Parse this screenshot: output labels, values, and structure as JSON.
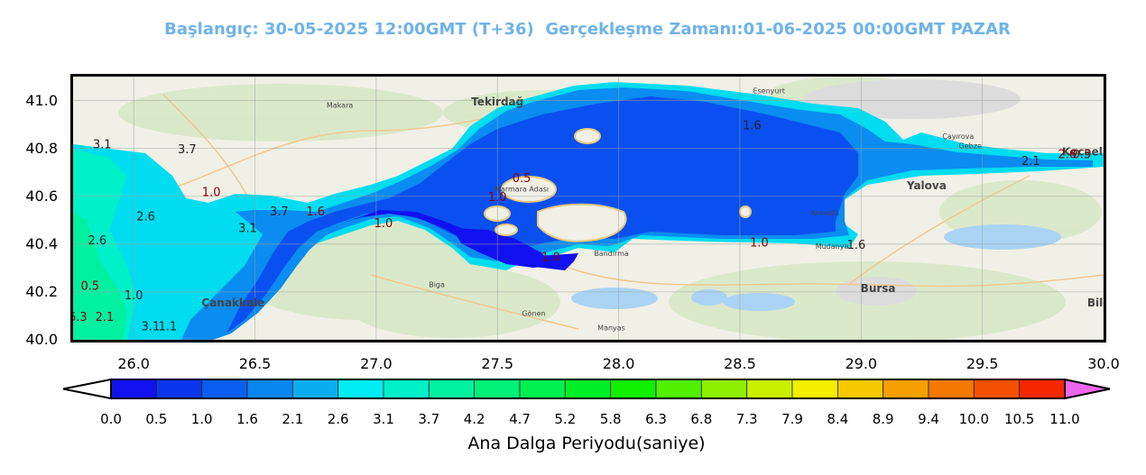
{
  "header": {
    "title": "Başlangıç: 30-05-2025 12:00GMT (T+36)  Gerçekleşme Zamanı:01-06-2025 00:00GMT PAZAR"
  },
  "map": {
    "type": "wave period contour map",
    "lon_range": [
      25.75,
      30.0
    ],
    "lat_range": [
      40.0,
      41.1
    ],
    "x_ticks": [
      "26.0",
      "26.5",
      "27.0",
      "27.5",
      "28.0",
      "28.5",
      "29.0",
      "29.5",
      "30.0"
    ],
    "y_ticks": [
      "40.0",
      "40.2",
      "40.4",
      "40.6",
      "40.8",
      "41.0"
    ],
    "grid": true,
    "place_labels": [
      {
        "name": "Tekirdağ",
        "lon": 27.5,
        "lat": 40.98
      },
      {
        "name": "Marmara Adası",
        "lon": 27.6,
        "lat": 40.62
      },
      {
        "name": "Bandırma",
        "lon": 27.97,
        "lat": 40.35
      },
      {
        "name": "Çanakkale",
        "lon": 26.41,
        "lat": 40.14
      },
      {
        "name": "Yalova",
        "lon": 29.27,
        "lat": 40.63
      },
      {
        "name": "Bursa",
        "lon": 29.07,
        "lat": 40.2
      },
      {
        "name": "Kocaeli",
        "lon": 29.92,
        "lat": 40.77
      },
      {
        "name": "Bile",
        "lon": 29.98,
        "lat": 40.14
      },
      {
        "name": "Gönen",
        "lon": 27.65,
        "lat": 40.1
      },
      {
        "name": "Manyas",
        "lon": 27.97,
        "lat": 40.04
      },
      {
        "name": "Biga",
        "lon": 27.25,
        "lat": 40.22
      },
      {
        "name": "Makara",
        "lon": 26.85,
        "lat": 40.97
      },
      {
        "name": "Esenyurt",
        "lon": 28.62,
        "lat": 41.03
      },
      {
        "name": "Armutlu",
        "lon": 28.85,
        "lat": 40.52
      },
      {
        "name": "Mudanya",
        "lon": 28.88,
        "lat": 40.38
      },
      {
        "name": "Çayırova",
        "lon": 29.4,
        "lat": 40.84
      },
      {
        "name": "Gebze",
        "lon": 29.45,
        "lat": 40.8
      }
    ],
    "contour_labels": [
      {
        "text": "3.1",
        "lon": 25.87,
        "lat": 40.8,
        "color": "#222222"
      },
      {
        "text": "3.7",
        "lon": 26.22,
        "lat": 40.78,
        "color": "#222222"
      },
      {
        "text": "1.0",
        "lon": 26.32,
        "lat": 40.6,
        "color": "#8b0000"
      },
      {
        "text": "2.6",
        "lon": 26.05,
        "lat": 40.5,
        "color": "#222222"
      },
      {
        "text": "3.7",
        "lon": 26.6,
        "lat": 40.52,
        "color": "#222222"
      },
      {
        "text": "3.1",
        "lon": 26.47,
        "lat": 40.45,
        "color": "#222222"
      },
      {
        "text": "1.6",
        "lon": 26.75,
        "lat": 40.52,
        "color": "#8b0000"
      },
      {
        "text": "2.6",
        "lon": 25.85,
        "lat": 40.4,
        "color": "#222222"
      },
      {
        "text": "1.0",
        "lon": 27.03,
        "lat": 40.47,
        "color": "#8b0000"
      },
      {
        "text": "0.5",
        "lon": 27.6,
        "lat": 40.66,
        "color": "#8b0000"
      },
      {
        "text": "1.0",
        "lon": 27.5,
        "lat": 40.58,
        "color": "#8b0000"
      },
      {
        "text": "1.0",
        "lon": 27.72,
        "lat": 40.33,
        "color": "#8b0000"
      },
      {
        "text": "1.6",
        "lon": 28.55,
        "lat": 40.88,
        "color": "#222222"
      },
      {
        "text": "1.0",
        "lon": 28.58,
        "lat": 40.39,
        "color": "#8b0000"
      },
      {
        "text": "1.6",
        "lon": 28.98,
        "lat": 40.38,
        "color": "#222222"
      },
      {
        "text": "2.1",
        "lon": 29.7,
        "lat": 40.73,
        "color": "#222222"
      },
      {
        "text": "2.6",
        "lon": 29.85,
        "lat": 40.76,
        "color": "#8b0000"
      },
      {
        "text": "0.5",
        "lon": 29.91,
        "lat": 40.76,
        "color": "#8b0000"
      },
      {
        "text": "0.5",
        "lon": 25.82,
        "lat": 40.21,
        "color": "#8b0000"
      },
      {
        "text": "1.0",
        "lon": 26.0,
        "lat": 40.17,
        "color": "#222222"
      },
      {
        "text": "2.1",
        "lon": 25.88,
        "lat": 40.08,
        "color": "#8b0000"
      },
      {
        "text": "6.3",
        "lon": 25.77,
        "lat": 40.08,
        "color": "#8b0000"
      },
      {
        "text": "3.1",
        "lon": 26.07,
        "lat": 40.04,
        "color": "#222222"
      },
      {
        "text": "1.1",
        "lon": 26.14,
        "lat": 40.04,
        "color": "#222222"
      }
    ]
  },
  "colorbar": {
    "label": "Ana Dalga Periyodu(saniye)",
    "ticks": [
      "0.0",
      "0.5",
      "1.0",
      "1.6",
      "2.1",
      "2.6",
      "3.1",
      "3.7",
      "4.2",
      "4.7",
      "5.2",
      "5.8",
      "6.3",
      "6.8",
      "7.3",
      "7.9",
      "8.4",
      "8.9",
      "9.4",
      "10.0",
      "10.5",
      "11.0"
    ],
    "colors": [
      "#1111f0",
      "#0a36f0",
      "#0a5ef0",
      "#0a86f0",
      "#0aaef0",
      "#00ecf5",
      "#00f0c8",
      "#00f0a0",
      "#00f078",
      "#00f050",
      "#00f028",
      "#10f000",
      "#50f000",
      "#8ef000",
      "#c8f000",
      "#f5f000",
      "#f5c800",
      "#f5a000",
      "#f57800",
      "#f55000",
      "#f52800",
      "#f50000"
    ],
    "under_color": "#ffffff",
    "over_color": "#ee66ee"
  }
}
